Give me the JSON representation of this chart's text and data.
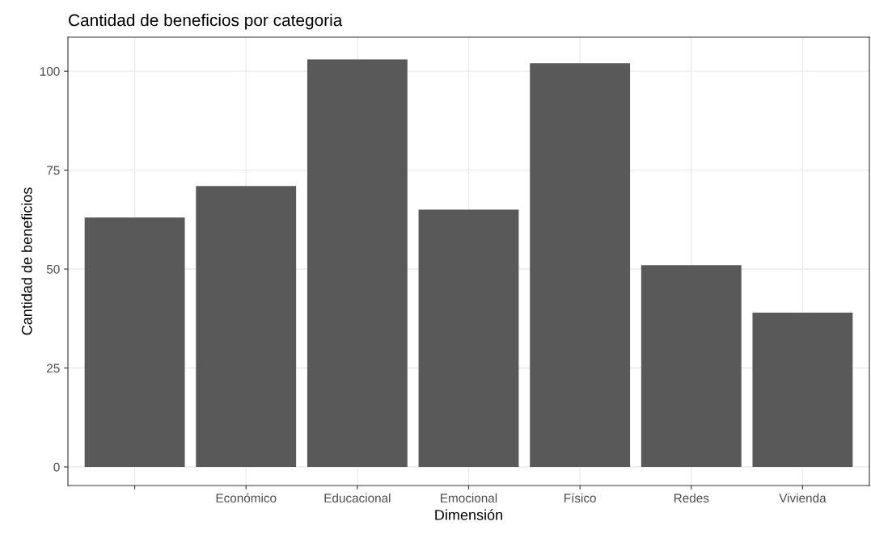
{
  "chart_data": {
    "type": "bar",
    "title": "Cantidad de beneficios por categoria",
    "xlabel": "Dimensión",
    "ylabel": "Cantidad de beneficios",
    "categories": [
      null,
      "Económico",
      "Educacional",
      "Emocional",
      "Físico",
      "Redes",
      "Vivienda"
    ],
    "values": [
      63,
      71,
      103,
      65,
      102,
      51,
      39
    ],
    "color": "#595959",
    "ylim": [
      -4.7,
      108.6
    ],
    "yticks": [
      0,
      25,
      50,
      75,
      100
    ],
    "grid": true,
    "legend": false
  }
}
